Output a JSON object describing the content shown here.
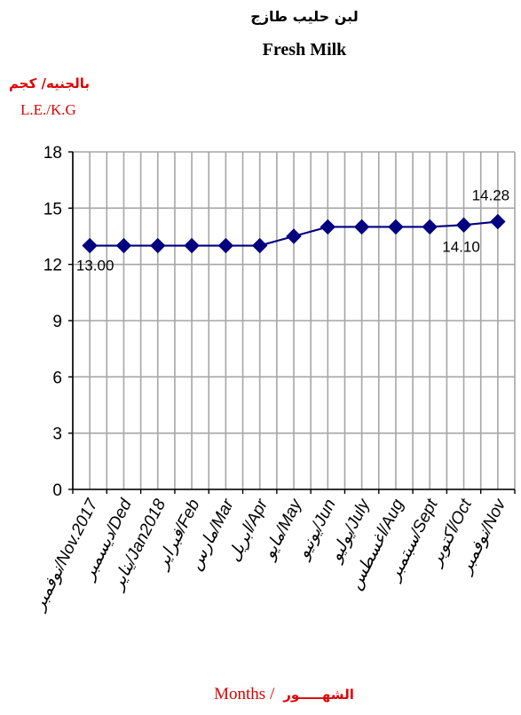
{
  "chart_data": {
    "type": "line",
    "title": "لبن حليب طازج",
    "subtitle": "Fresh Milk",
    "unit_ar": "بالجنيه/ كجم",
    "unit_en": "L.E./K.G",
    "categories": [
      "نوفمبر/Nov.2017",
      "ديسمبر/Ded",
      "يناير/Jan2018",
      "فبراير/Feb",
      "مارس/Mar",
      "ابريل/Apr",
      "مايو/May",
      "يونيو/Jun",
      "يوليو/July",
      "اغسطس/Aug",
      "سبتمبر/Sept",
      "اكتوبر/Oct",
      "نوفمبر/Nov"
    ],
    "series": [
      {
        "values": [
          13.0,
          13.0,
          13.0,
          13.0,
          13.0,
          13.0,
          13.5,
          14.0,
          14.0,
          14.0,
          14.0,
          14.1,
          14.28
        ]
      }
    ],
    "data_labels": [
      {
        "index": 0,
        "text": "13.00"
      },
      {
        "index": 11,
        "text": "14.10"
      },
      {
        "index": 12,
        "text": "14.28"
      }
    ],
    "ylim": [
      0,
      18
    ],
    "yticks": [
      "0",
      "3",
      "6",
      "9",
      "12",
      "15",
      "18"
    ],
    "xlabel_en": "Months /",
    "xlabel_ar": "الشهـــــور",
    "grid": true,
    "colors": {
      "line": "#000080",
      "grid": "#a6a6a6",
      "accent": "#e00000"
    }
  }
}
